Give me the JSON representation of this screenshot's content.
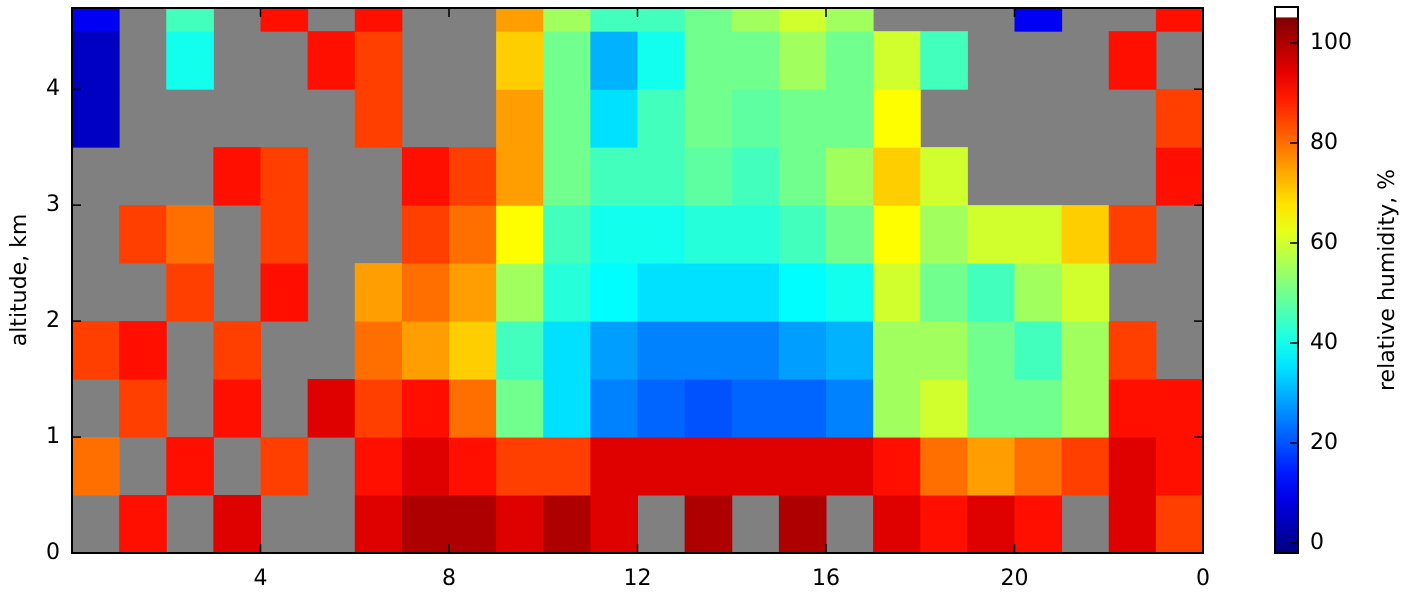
{
  "chart_data": {
    "type": "heatmap",
    "xlabel": null,
    "ylabel": "altitude, km",
    "colorbar_label": "relative humidity, %",
    "colormap": "jet",
    "gap_color": "#808080",
    "xbins": [
      0,
      1,
      2,
      3,
      4,
      5,
      6,
      7,
      8,
      9,
      10,
      11,
      12,
      13,
      14,
      15,
      16,
      17,
      18,
      19,
      20,
      21,
      22,
      23,
      24
    ],
    "ybins": [
      0,
      0.5,
      1,
      1.5,
      2,
      2.5,
      3,
      3.5,
      4,
      4.5,
      4.7
    ],
    "xlim": [
      0,
      24
    ],
    "ylim": [
      0,
      4.7
    ],
    "xticks": [
      4,
      8,
      12,
      16,
      20,
      {
        "value": 24,
        "label": "0"
      }
    ],
    "yticks": [
      0,
      1,
      2,
      3,
      4
    ],
    "zlim": [
      -2,
      105
    ],
    "zticks": [
      0,
      20,
      40,
      60,
      80,
      100
    ],
    "z": [
      [
        null,
        90,
        null,
        95,
        null,
        null,
        95,
        100,
        100,
        95,
        100,
        95,
        null,
        100,
        null,
        100,
        null,
        95,
        90,
        95,
        90,
        null,
        95,
        85
      ],
      [
        80,
        null,
        90,
        null,
        85,
        null,
        90,
        95,
        90,
        85,
        85,
        95,
        95,
        95,
        95,
        95,
        95,
        90,
        80,
        75,
        80,
        85,
        95,
        90
      ],
      [
        null,
        85,
        null,
        90,
        null,
        95,
        85,
        90,
        80,
        50,
        35,
        25,
        22,
        20,
        22,
        22,
        25,
        55,
        60,
        50,
        50,
        55,
        90,
        90
      ],
      [
        85,
        90,
        null,
        85,
        null,
        null,
        80,
        75,
        70,
        45,
        35,
        28,
        25,
        25,
        25,
        28,
        30,
        55,
        55,
        50,
        45,
        55,
        85,
        null
      ],
      [
        null,
        null,
        85,
        null,
        90,
        null,
        75,
        80,
        75,
        55,
        42,
        38,
        35,
        35,
        35,
        38,
        40,
        60,
        50,
        45,
        55,
        60,
        null,
        null
      ],
      [
        null,
        85,
        80,
        null,
        85,
        null,
        null,
        85,
        80,
        65,
        45,
        40,
        40,
        42,
        42,
        45,
        50,
        65,
        55,
        60,
        60,
        70,
        85,
        null
      ],
      [
        null,
        null,
        null,
        90,
        85,
        null,
        null,
        90,
        85,
        75,
        50,
        45,
        45,
        48,
        45,
        50,
        55,
        70,
        60,
        null,
        null,
        null,
        null,
        90
      ],
      [
        5,
        null,
        null,
        null,
        null,
        null,
        85,
        null,
        null,
        75,
        50,
        35,
        45,
        50,
        48,
        50,
        50,
        65,
        null,
        null,
        null,
        null,
        null,
        85
      ],
      [
        5,
        null,
        40,
        null,
        null,
        90,
        85,
        null,
        null,
        70,
        50,
        30,
        40,
        50,
        50,
        55,
        50,
        60,
        45,
        null,
        null,
        null,
        90,
        null
      ],
      [
        10,
        null,
        45,
        null,
        90,
        null,
        90,
        null,
        null,
        75,
        55,
        45,
        45,
        50,
        55,
        60,
        55,
        null,
        null,
        null,
        10,
        null,
        null,
        90
      ]
    ]
  }
}
